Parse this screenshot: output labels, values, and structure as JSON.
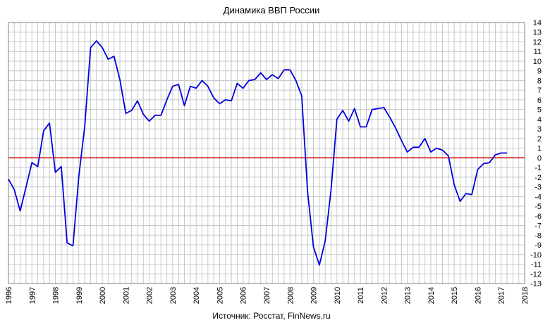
{
  "chart_data": {
    "type": "line",
    "title": "Динамика ВВП России",
    "source": "Источник: Росстат, FinNews.ru",
    "xlabel": "",
    "ylabel": "",
    "xlim": [
      1996,
      2018
    ],
    "ylim": [
      -13,
      14
    ],
    "grid": true,
    "x_ticks": [
      "1996",
      "1997",
      "1998",
      "1999",
      "2000",
      "2001",
      "2002",
      "2003",
      "2004",
      "2005",
      "2006",
      "2007",
      "2008",
      "2009",
      "2010",
      "2011",
      "2012",
      "2013",
      "2014",
      "2015",
      "2016",
      "2017",
      "2018"
    ],
    "y_ticks": [
      "14",
      "13",
      "12",
      "11",
      "10",
      "9",
      "8",
      "7",
      "6",
      "5",
      "4",
      "3",
      "2",
      "1",
      "0",
      "-1",
      "-2",
      "-3",
      "-4",
      "-5",
      "-6",
      "-7",
      "-8",
      "-9",
      "-10",
      "-11",
      "-12",
      "-13"
    ],
    "zero_line_color": "#cc0000",
    "series": [
      {
        "color": "#0000dd",
        "x": [
          1996.0,
          1996.25,
          1996.5,
          1996.75,
          1997.0,
          1997.25,
          1997.5,
          1997.75,
          1998.0,
          1998.25,
          1998.5,
          1998.75,
          1999.0,
          1999.25,
          1999.5,
          1999.75,
          2000.0,
          2000.25,
          2000.5,
          2000.75,
          2001.0,
          2001.25,
          2001.5,
          2001.75,
          2002.0,
          2002.25,
          2002.5,
          2002.75,
          2003.0,
          2003.25,
          2003.5,
          2003.75,
          2004.0,
          2004.25,
          2004.5,
          2004.75,
          2005.0,
          2005.25,
          2005.5,
          2005.75,
          2006.0,
          2006.25,
          2006.5,
          2006.75,
          2007.0,
          2007.25,
          2007.5,
          2007.75,
          2008.0,
          2008.25,
          2008.5,
          2008.75,
          2009.0,
          2009.25,
          2009.5,
          2009.75,
          2010.0,
          2010.25,
          2010.5,
          2010.75,
          2011.0,
          2011.25,
          2011.5,
          2011.75,
          2012.0,
          2012.25,
          2012.5,
          2012.75,
          2013.0,
          2013.25,
          2013.5,
          2013.75,
          2014.0,
          2014.25,
          2014.5,
          2014.75,
          2015.0,
          2015.25,
          2015.5,
          2015.75,
          2016.0,
          2016.25,
          2016.5,
          2016.75,
          2017.0,
          2017.25
        ],
        "y": [
          -2.2,
          -3.3,
          -5.5,
          -3.0,
          -0.5,
          -0.9,
          2.8,
          3.6,
          -1.5,
          -0.9,
          -8.8,
          -9.1,
          -1.9,
          3.2,
          11.4,
          12.1,
          11.4,
          10.2,
          10.5,
          8.1,
          4.6,
          4.9,
          5.9,
          4.5,
          3.8,
          4.4,
          4.4,
          6.0,
          7.4,
          7.6,
          5.4,
          7.4,
          7.2,
          8.0,
          7.4,
          6.2,
          5.6,
          6.0,
          5.9,
          7.7,
          7.2,
          8.0,
          8.1,
          8.8,
          8.1,
          8.6,
          8.2,
          9.1,
          9.1,
          8.0,
          6.4,
          -3.5,
          -9.2,
          -11.1,
          -8.6,
          -3.3,
          4.0,
          4.9,
          3.8,
          5.1,
          3.2,
          3.2,
          5.0,
          5.1,
          5.2,
          4.2,
          3.1,
          1.8,
          0.6,
          1.1,
          1.1,
          2.0,
          0.6,
          1.0,
          0.8,
          0.2,
          -2.8,
          -4.5,
          -3.7,
          -3.8,
          -1.2,
          -0.6,
          -0.5,
          0.3,
          0.5,
          0.5
        ]
      }
    ]
  }
}
